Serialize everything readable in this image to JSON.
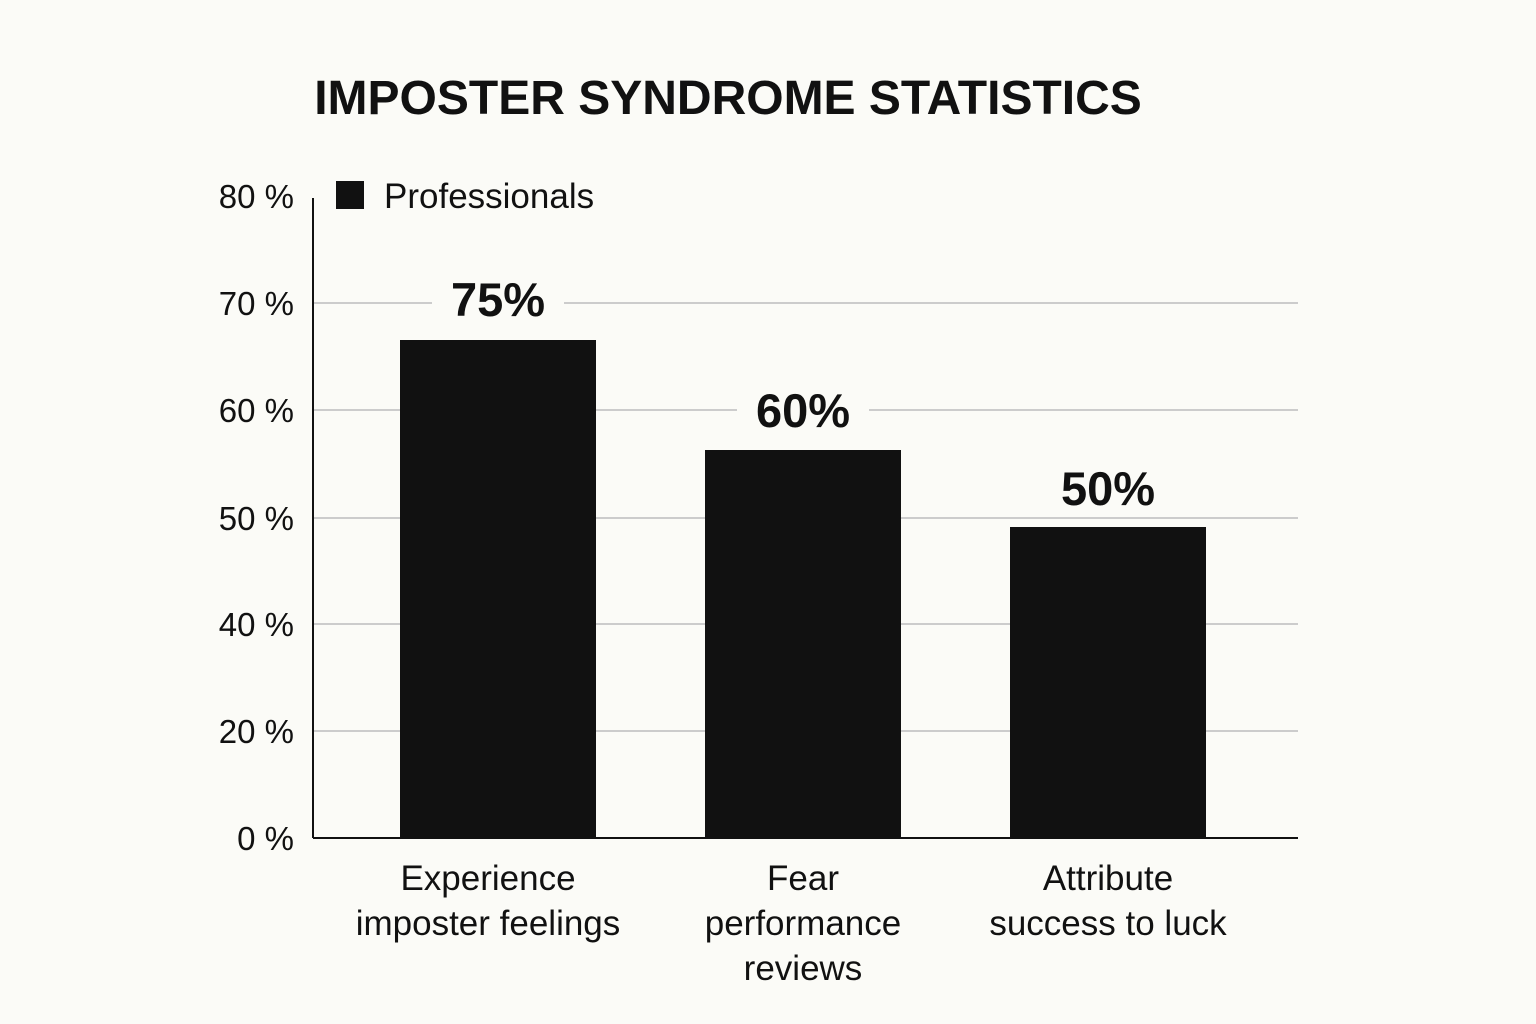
{
  "chart_data": {
    "type": "bar",
    "title": "IMPOSTER SYNDROME STATISTICS",
    "xlabel": "",
    "ylabel": "",
    "ylim": [
      0,
      80
    ],
    "y_ticks": [
      {
        "value": 0,
        "label": "0 %"
      },
      {
        "value": 20,
        "label": "20 %"
      },
      {
        "value": 40,
        "label": "40 %"
      },
      {
        "value": 50,
        "label": "50 %"
      },
      {
        "value": 60,
        "label": "60 %"
      },
      {
        "value": 70,
        "label": "70 %"
      },
      {
        "value": 80,
        "label": "80 %"
      }
    ],
    "grid": true,
    "legend": {
      "position": "top-left",
      "entries": [
        "Professionals"
      ]
    },
    "categories": [
      [
        "Experience",
        "imposter  feelings"
      ],
      [
        "Fear",
        "performance",
        "reviews"
      ],
      [
        "Attribute",
        "success to luck"
      ]
    ],
    "series": [
      {
        "name": "Professionals",
        "values": [
          75,
          60,
          50
        ],
        "value_labels": [
          "75%",
          "60%",
          "50%"
        ]
      }
    ],
    "colors": {
      "bar": "#111111",
      "background": "#fbfbf7",
      "grid": "#bdbdbd",
      "axis": "#111111",
      "text": "#111111"
    }
  }
}
